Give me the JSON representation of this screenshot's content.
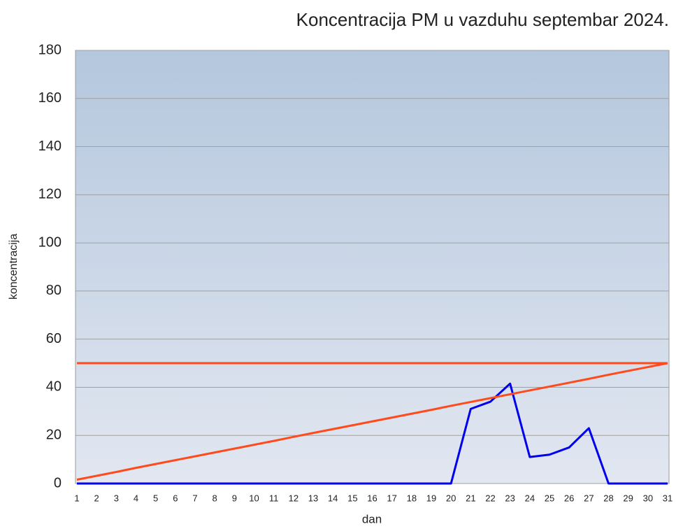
{
  "chart_data": {
    "type": "line",
    "title": "Koncentracija PM u vazduhu septembar 2024.",
    "x_label": "dan",
    "y_label": "koncentracija",
    "categories": [
      "1",
      "2",
      "3",
      "4",
      "5",
      "6",
      "7",
      "8",
      "9",
      "10",
      "11",
      "12",
      "13",
      "14",
      "15",
      "16",
      "17",
      "18",
      "19",
      "20",
      "21",
      "22",
      "23",
      "24",
      "25",
      "26",
      "27",
      "28",
      "29",
      "30",
      "31"
    ],
    "series": [
      {
        "color": "#0000ee",
        "values": [
          0,
          0,
          0,
          0,
          0,
          0,
          0,
          0,
          0,
          0,
          0,
          0,
          0,
          0,
          0,
          0,
          0,
          0,
          0,
          0,
          31,
          34,
          41.5,
          11,
          12,
          15,
          23,
          0,
          0,
          0,
          0
        ]
      },
      {
        "color": "#ff4a1c",
        "values": [
          50,
          50,
          50,
          50,
          50,
          50,
          50,
          50,
          50,
          50,
          50,
          50,
          50,
          50,
          50,
          50,
          50,
          50,
          50,
          50,
          50,
          50,
          50,
          50,
          50,
          50,
          50,
          50,
          50,
          50,
          50
        ]
      },
      {
        "color": "#ff4a1c",
        "values": [
          1.6,
          3.2,
          4.8,
          6.5,
          8.1,
          9.7,
          11.3,
          12.9,
          14.5,
          16.1,
          17.7,
          19.4,
          21.0,
          22.6,
          24.2,
          25.8,
          27.4,
          29.0,
          30.6,
          32.3,
          33.9,
          35.5,
          37.1,
          38.7,
          40.3,
          41.9,
          43.5,
          45.2,
          46.8,
          48.4,
          50.0
        ]
      }
    ],
    "ylim": [
      0,
      180
    ],
    "yticks": [
      0,
      20,
      40,
      60,
      80,
      100,
      120,
      140,
      160,
      180
    ],
    "grid": true
  }
}
